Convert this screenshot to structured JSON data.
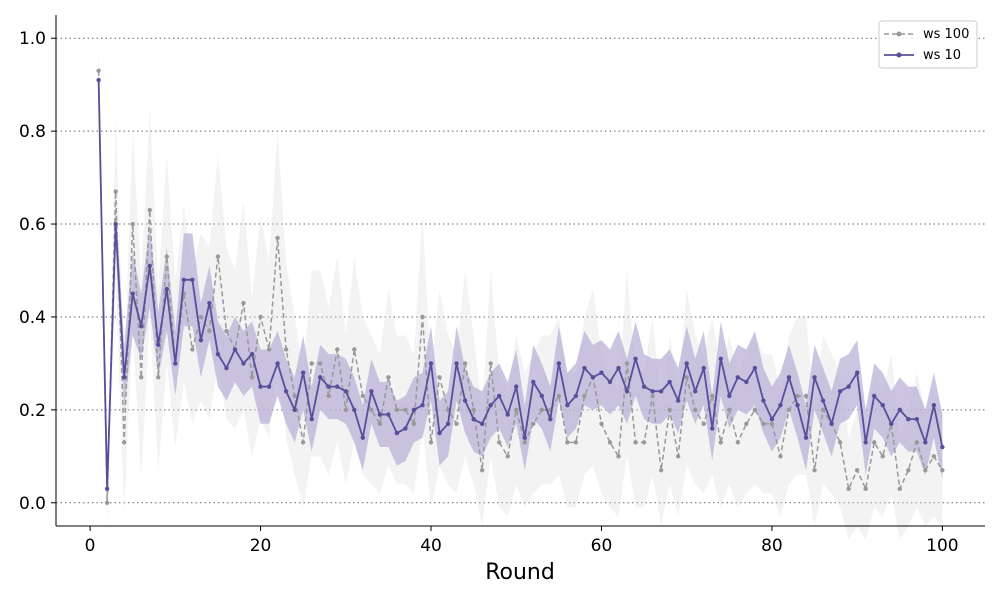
{
  "chart_data": {
    "type": "line",
    "title": "",
    "xlabel": "Round",
    "ylabel": "",
    "xlim": [
      -4,
      105
    ],
    "ylim": [
      -0.05,
      1.05
    ],
    "xticks": [
      0,
      20,
      40,
      60,
      80,
      100
    ],
    "yticks": [
      0.0,
      0.2,
      0.4,
      0.6,
      0.8,
      1.0
    ],
    "xtick_labels": [
      "0",
      "20",
      "40",
      "60",
      "80",
      "100"
    ],
    "ytick_labels": [
      "0.0",
      "0.2",
      "0.4",
      "0.6",
      "0.8",
      "1.0"
    ],
    "grid": "horizontal dotted",
    "legend_position": "top-right",
    "x": [
      1,
      2,
      3,
      4,
      5,
      6,
      7,
      8,
      9,
      10,
      11,
      12,
      13,
      14,
      15,
      16,
      17,
      18,
      19,
      20,
      21,
      22,
      23,
      24,
      25,
      26,
      27,
      28,
      29,
      30,
      31,
      32,
      33,
      34,
      35,
      36,
      37,
      38,
      39,
      40,
      41,
      42,
      43,
      44,
      45,
      46,
      47,
      48,
      49,
      50,
      51,
      52,
      53,
      54,
      55,
      56,
      57,
      58,
      59,
      60,
      61,
      62,
      63,
      64,
      65,
      66,
      67,
      68,
      69,
      70,
      71,
      72,
      73,
      74,
      75,
      76,
      77,
      78,
      79,
      80,
      81,
      82,
      83,
      84,
      85,
      86,
      87,
      88,
      89,
      90,
      91,
      92,
      93,
      94,
      95,
      96,
      97,
      98,
      99,
      100
    ],
    "series": [
      {
        "name": "ws 100",
        "color": "#999999",
        "band_color": "#dddddd",
        "line_style": "dashed",
        "values": [
          0.93,
          0.0,
          0.67,
          0.13,
          0.6,
          0.27,
          0.63,
          0.27,
          0.53,
          0.3,
          0.45,
          0.33,
          0.4,
          0.37,
          0.53,
          0.37,
          0.33,
          0.43,
          0.27,
          0.4,
          0.33,
          0.57,
          0.33,
          0.23,
          0.13,
          0.3,
          0.3,
          0.23,
          0.33,
          0.2,
          0.33,
          0.23,
          0.2,
          0.17,
          0.27,
          0.2,
          0.2,
          0.17,
          0.4,
          0.13,
          0.27,
          0.2,
          0.17,
          0.3,
          0.2,
          0.07,
          0.3,
          0.13,
          0.1,
          0.2,
          0.13,
          0.17,
          0.2,
          0.2,
          0.23,
          0.13,
          0.13,
          0.23,
          0.27,
          0.17,
          0.13,
          0.1,
          0.3,
          0.13,
          0.13,
          0.23,
          0.07,
          0.2,
          0.1,
          0.27,
          0.2,
          0.17,
          0.23,
          0.13,
          0.2,
          0.13,
          0.17,
          0.2,
          0.17,
          0.17,
          0.1,
          0.2,
          0.23,
          0.23,
          0.07,
          0.2,
          0.17,
          0.13,
          0.03,
          0.07,
          0.03,
          0.13,
          0.1,
          0.17,
          0.03,
          0.07,
          0.13,
          0.07,
          0.1,
          0.07
        ],
        "lower": [
          0.85,
          -0.05,
          0.48,
          -0.02,
          0.38,
          0.05,
          0.4,
          0.07,
          0.3,
          0.12,
          0.26,
          0.17,
          0.22,
          0.18,
          0.3,
          0.18,
          0.16,
          0.2,
          0.1,
          0.18,
          0.14,
          0.3,
          0.14,
          0.06,
          -0.01,
          0.1,
          0.1,
          0.06,
          0.13,
          0.04,
          0.13,
          0.06,
          0.04,
          0.02,
          0.08,
          0.04,
          0.04,
          0.02,
          0.16,
          -0.01,
          0.08,
          0.04,
          0.02,
          0.1,
          0.04,
          -0.05,
          0.1,
          -0.01,
          -0.03,
          0.04,
          -0.01,
          0.02,
          0.04,
          0.04,
          0.06,
          -0.01,
          -0.01,
          0.06,
          0.08,
          0.02,
          -0.01,
          -0.03,
          0.1,
          -0.01,
          -0.01,
          0.06,
          -0.05,
          0.04,
          -0.03,
          0.08,
          0.04,
          0.02,
          0.06,
          -0.01,
          0.04,
          -0.01,
          0.02,
          0.04,
          0.02,
          0.02,
          -0.03,
          0.04,
          0.06,
          0.06,
          -0.05,
          0.04,
          0.02,
          -0.01,
          -0.08,
          -0.05,
          -0.08,
          -0.01,
          -0.03,
          0.02,
          -0.08,
          -0.05,
          -0.01,
          -0.05,
          -0.03,
          -0.05
        ],
        "upper": [
          1.0,
          0.05,
          0.83,
          0.28,
          0.8,
          0.48,
          0.85,
          0.47,
          0.75,
          0.48,
          0.64,
          0.5,
          0.58,
          0.55,
          0.75,
          0.55,
          0.5,
          0.65,
          0.44,
          0.62,
          0.52,
          0.8,
          0.52,
          0.4,
          0.28,
          0.5,
          0.5,
          0.42,
          0.53,
          0.36,
          0.53,
          0.4,
          0.36,
          0.32,
          0.46,
          0.36,
          0.36,
          0.32,
          0.62,
          0.28,
          0.46,
          0.36,
          0.32,
          0.5,
          0.36,
          0.2,
          0.5,
          0.28,
          0.24,
          0.36,
          0.28,
          0.32,
          0.36,
          0.36,
          0.4,
          0.28,
          0.28,
          0.4,
          0.46,
          0.32,
          0.28,
          0.24,
          0.5,
          0.28,
          0.28,
          0.4,
          0.2,
          0.36,
          0.24,
          0.46,
          0.36,
          0.32,
          0.4,
          0.28,
          0.36,
          0.28,
          0.32,
          0.36,
          0.32,
          0.32,
          0.24,
          0.36,
          0.4,
          0.4,
          0.2,
          0.36,
          0.32,
          0.28,
          0.14,
          0.2,
          0.14,
          0.28,
          0.24,
          0.32,
          0.14,
          0.2,
          0.28,
          0.2,
          0.24,
          0.2
        ]
      },
      {
        "name": "ws 10",
        "color": "#5a4e9a",
        "band_color": "#b9b2d8",
        "line_style": "solid",
        "values": [
          0.91,
          0.03,
          0.6,
          0.27,
          0.45,
          0.38,
          0.51,
          0.34,
          0.46,
          0.3,
          0.48,
          0.48,
          0.35,
          0.43,
          0.32,
          0.29,
          0.33,
          0.3,
          0.32,
          0.25,
          0.25,
          0.3,
          0.24,
          0.2,
          0.28,
          0.18,
          0.27,
          0.25,
          0.25,
          0.24,
          0.2,
          0.14,
          0.24,
          0.19,
          0.19,
          0.15,
          0.16,
          0.2,
          0.21,
          0.3,
          0.15,
          0.17,
          0.3,
          0.22,
          0.18,
          0.17,
          0.21,
          0.23,
          0.19,
          0.25,
          0.14,
          0.26,
          0.23,
          0.18,
          0.3,
          0.21,
          0.23,
          0.29,
          0.27,
          0.28,
          0.26,
          0.29,
          0.24,
          0.31,
          0.25,
          0.24,
          0.24,
          0.26,
          0.22,
          0.3,
          0.24,
          0.29,
          0.16,
          0.31,
          0.23,
          0.27,
          0.26,
          0.29,
          0.22,
          0.18,
          0.21,
          0.27,
          0.21,
          0.14,
          0.27,
          0.22,
          0.17,
          0.24,
          0.25,
          0.28,
          0.13,
          0.23,
          0.21,
          0.17,
          0.2,
          0.18,
          0.18,
          0.13,
          0.21,
          0.12
        ],
        "lower": [
          0.89,
          0.01,
          0.55,
          0.2,
          0.36,
          0.31,
          0.42,
          0.27,
          0.37,
          0.23,
          0.38,
          0.38,
          0.27,
          0.35,
          0.25,
          0.22,
          0.26,
          0.23,
          0.25,
          0.17,
          0.17,
          0.23,
          0.17,
          0.13,
          0.2,
          0.11,
          0.2,
          0.18,
          0.18,
          0.17,
          0.13,
          0.07,
          0.17,
          0.12,
          0.12,
          0.08,
          0.09,
          0.13,
          0.14,
          0.22,
          0.08,
          0.1,
          0.22,
          0.15,
          0.11,
          0.1,
          0.14,
          0.16,
          0.12,
          0.17,
          0.07,
          0.18,
          0.16,
          0.11,
          0.22,
          0.14,
          0.16,
          0.21,
          0.2,
          0.21,
          0.19,
          0.21,
          0.17,
          0.23,
          0.18,
          0.17,
          0.17,
          0.19,
          0.15,
          0.22,
          0.17,
          0.21,
          0.09,
          0.23,
          0.16,
          0.2,
          0.19,
          0.21,
          0.15,
          0.11,
          0.14,
          0.2,
          0.14,
          0.07,
          0.2,
          0.15,
          0.1,
          0.17,
          0.18,
          0.21,
          0.06,
          0.16,
          0.14,
          0.1,
          0.13,
          0.11,
          0.11,
          0.06,
          0.14,
          0.05
        ],
        "upper": [
          0.93,
          0.05,
          0.65,
          0.34,
          0.54,
          0.45,
          0.6,
          0.41,
          0.55,
          0.37,
          0.58,
          0.58,
          0.43,
          0.51,
          0.39,
          0.36,
          0.4,
          0.37,
          0.39,
          0.33,
          0.33,
          0.37,
          0.31,
          0.27,
          0.36,
          0.25,
          0.34,
          0.32,
          0.32,
          0.31,
          0.27,
          0.21,
          0.31,
          0.26,
          0.26,
          0.22,
          0.23,
          0.27,
          0.28,
          0.38,
          0.22,
          0.24,
          0.38,
          0.29,
          0.25,
          0.24,
          0.28,
          0.3,
          0.26,
          0.33,
          0.21,
          0.34,
          0.3,
          0.25,
          0.38,
          0.28,
          0.3,
          0.37,
          0.34,
          0.35,
          0.33,
          0.37,
          0.31,
          0.39,
          0.32,
          0.31,
          0.31,
          0.33,
          0.29,
          0.38,
          0.31,
          0.37,
          0.23,
          0.39,
          0.3,
          0.34,
          0.33,
          0.37,
          0.29,
          0.25,
          0.28,
          0.34,
          0.28,
          0.21,
          0.34,
          0.29,
          0.24,
          0.31,
          0.32,
          0.35,
          0.2,
          0.3,
          0.28,
          0.24,
          0.27,
          0.25,
          0.25,
          0.2,
          0.28,
          0.19
        ]
      }
    ]
  }
}
